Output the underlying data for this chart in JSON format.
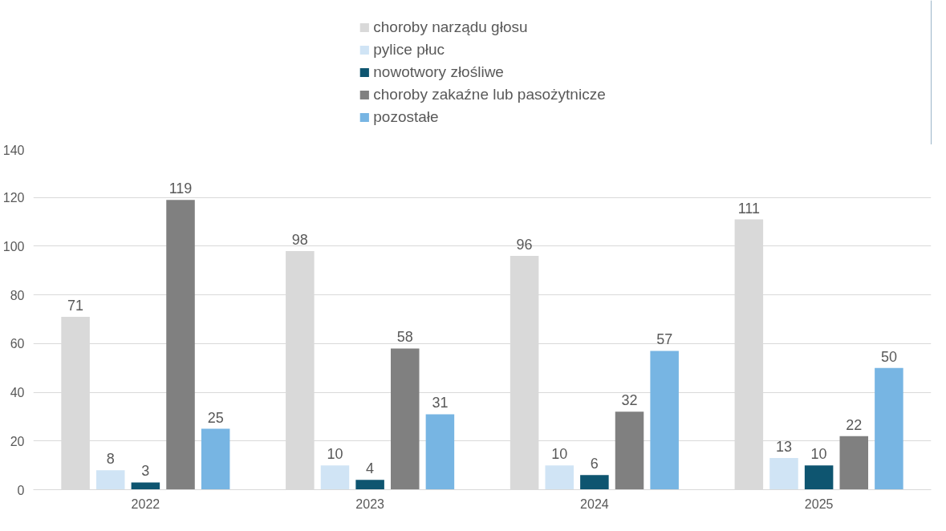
{
  "chart_data": {
    "type": "bar",
    "categories": [
      "2022",
      "2023",
      "2024",
      "2025"
    ],
    "series": [
      {
        "name": "choroby narządu głosu",
        "color": "#d9d9d9",
        "values": [
          71,
          98,
          96,
          111
        ]
      },
      {
        "name": "pylice płuc",
        "color": "#d0e4f5",
        "values": [
          8,
          10,
          10,
          13
        ]
      },
      {
        "name": "nowotwory złośliwe",
        "color": "#0e5570",
        "values": [
          3,
          4,
          6,
          10
        ]
      },
      {
        "name": "choroby zakaźne lub pasożytnicze",
        "color": "#808080",
        "values": [
          119,
          58,
          32,
          22
        ]
      },
      {
        "name": "pozostałe",
        "color": "#77b5e3",
        "values": [
          25,
          31,
          57,
          50
        ]
      }
    ],
    "ylim": [
      0,
      140
    ],
    "yticks": [
      0,
      20,
      40,
      60,
      80,
      100,
      120,
      140
    ],
    "grid": "y",
    "legend": "top",
    "data_labels": true
  }
}
